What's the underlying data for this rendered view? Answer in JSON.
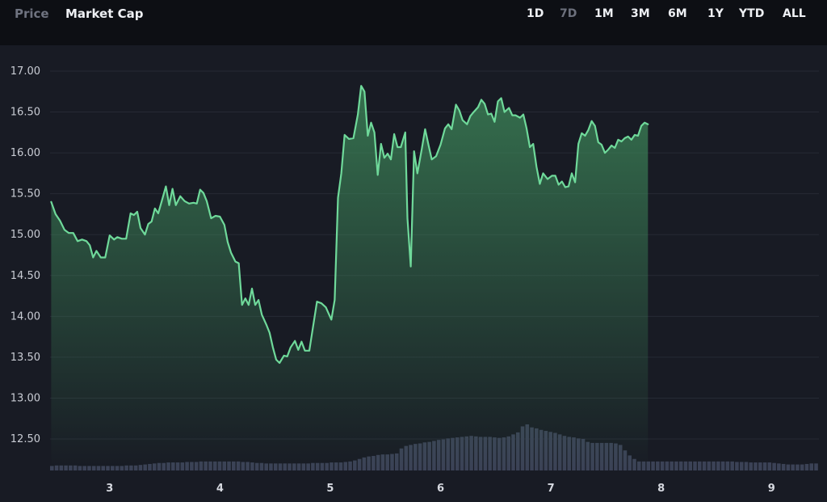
{
  "tabs": [
    {
      "label": "Price",
      "active": false
    },
    {
      "label": "Market Cap",
      "active": true
    }
  ],
  "ranges": [
    {
      "label": "1D",
      "active": false
    },
    {
      "label": "7D",
      "active": true
    },
    {
      "label": "1M",
      "active": false
    },
    {
      "label": "3M",
      "active": false
    },
    {
      "label": "6M",
      "active": false
    },
    {
      "label": "1Y",
      "active": false
    },
    {
      "label": "YTD",
      "active": false
    },
    {
      "label": "ALL",
      "active": false
    }
  ],
  "colors": {
    "line": "#6fd99a",
    "fill_top": "#3f8d5c",
    "volume": "#3b4256",
    "grid": "#262a35",
    "background": "#181b24"
  },
  "chart_data": {
    "type": "area",
    "title": "",
    "xlabel": "",
    "ylabel": "",
    "ylim": [
      12.2,
      17.2
    ],
    "xlim": [
      2.46,
      9.43
    ],
    "yticks": [
      12.5,
      13.0,
      13.5,
      14.0,
      14.5,
      15.0,
      15.5,
      16.0,
      16.5,
      17.0
    ],
    "ytick_labels": [
      "12.50",
      "13.00",
      "13.50",
      "14.00",
      "14.50",
      "15.00",
      "15.50",
      "16.00",
      "16.50",
      "17.00"
    ],
    "xticks": [
      3,
      4,
      5,
      6,
      7,
      8,
      9
    ],
    "xtick_labels": [
      "3",
      "4",
      "5",
      "6",
      "7",
      "8",
      "9"
    ],
    "grid": true,
    "legend": "none",
    "series": [
      {
        "points": [
          [
            2.47,
            15.4
          ],
          [
            2.51,
            15.25
          ],
          [
            2.55,
            15.17
          ],
          [
            2.59,
            15.06
          ],
          [
            2.63,
            15.02
          ],
          [
            2.67,
            15.02
          ],
          [
            2.71,
            14.92
          ],
          [
            2.75,
            14.94
          ],
          [
            2.79,
            14.92
          ],
          [
            2.82,
            14.87
          ],
          [
            2.85,
            14.72
          ],
          [
            2.88,
            14.8
          ],
          [
            2.92,
            14.72
          ],
          [
            2.96,
            14.72
          ],
          [
            3.0,
            14.99
          ],
          [
            3.04,
            14.94
          ],
          [
            3.07,
            14.97
          ],
          [
            3.11,
            14.95
          ],
          [
            3.15,
            14.95
          ],
          [
            3.19,
            15.26
          ],
          [
            3.22,
            15.24
          ],
          [
            3.25,
            15.28
          ],
          [
            3.28,
            15.08
          ],
          [
            3.32,
            15.0
          ],
          [
            3.35,
            15.13
          ],
          [
            3.38,
            15.16
          ],
          [
            3.41,
            15.32
          ],
          [
            3.44,
            15.26
          ],
          [
            3.47,
            15.4
          ],
          [
            3.51,
            15.59
          ],
          [
            3.54,
            15.36
          ],
          [
            3.57,
            15.56
          ],
          [
            3.6,
            15.36
          ],
          [
            3.64,
            15.47
          ],
          [
            3.68,
            15.41
          ],
          [
            3.72,
            15.38
          ],
          [
            3.76,
            15.39
          ],
          [
            3.79,
            15.38
          ],
          [
            3.82,
            15.55
          ],
          [
            3.85,
            15.51
          ],
          [
            3.88,
            15.41
          ],
          [
            3.92,
            15.2
          ],
          [
            3.96,
            15.23
          ],
          [
            4.0,
            15.22
          ],
          [
            4.04,
            15.12
          ],
          [
            4.07,
            14.91
          ],
          [
            4.1,
            14.78
          ],
          [
            4.14,
            14.67
          ],
          [
            4.17,
            14.65
          ],
          [
            4.2,
            14.14
          ],
          [
            4.23,
            14.22
          ],
          [
            4.26,
            14.14
          ],
          [
            4.29,
            14.34
          ],
          [
            4.32,
            14.14
          ],
          [
            4.35,
            14.2
          ],
          [
            4.38,
            14.02
          ],
          [
            4.42,
            13.9
          ],
          [
            4.45,
            13.8
          ],
          [
            4.48,
            13.62
          ],
          [
            4.51,
            13.47
          ],
          [
            4.54,
            13.43
          ],
          [
            4.58,
            13.52
          ],
          [
            4.61,
            13.51
          ],
          [
            4.64,
            13.62
          ],
          [
            4.68,
            13.7
          ],
          [
            4.71,
            13.59
          ],
          [
            4.74,
            13.69
          ],
          [
            4.77,
            13.58
          ],
          [
            4.81,
            13.58
          ],
          [
            4.84,
            13.84
          ],
          [
            4.88,
            14.18
          ],
          [
            4.92,
            14.16
          ],
          [
            4.96,
            14.11
          ],
          [
            4.98,
            14.05
          ],
          [
            5.01,
            13.96
          ],
          [
            5.04,
            14.2
          ],
          [
            5.07,
            15.45
          ],
          [
            5.1,
            15.75
          ],
          [
            5.13,
            16.22
          ],
          [
            5.17,
            16.17
          ],
          [
            5.21,
            16.18
          ],
          [
            5.25,
            16.47
          ],
          [
            5.28,
            16.82
          ],
          [
            5.31,
            16.75
          ],
          [
            5.34,
            16.21
          ],
          [
            5.37,
            16.37
          ],
          [
            5.4,
            16.25
          ],
          [
            5.43,
            15.73
          ],
          [
            5.46,
            16.11
          ],
          [
            5.49,
            15.94
          ],
          [
            5.52,
            15.99
          ],
          [
            5.55,
            15.92
          ],
          [
            5.58,
            16.23
          ],
          [
            5.61,
            16.07
          ],
          [
            5.64,
            16.07
          ],
          [
            5.68,
            16.25
          ],
          [
            5.7,
            15.2
          ],
          [
            5.73,
            14.61
          ],
          [
            5.76,
            16.02
          ],
          [
            5.79,
            15.75
          ],
          [
            5.83,
            16.05
          ],
          [
            5.86,
            16.29
          ],
          [
            5.89,
            16.1
          ],
          [
            5.92,
            15.92
          ],
          [
            5.96,
            15.96
          ],
          [
            6.0,
            16.1
          ],
          [
            6.04,
            16.3
          ],
          [
            6.07,
            16.35
          ],
          [
            6.1,
            16.29
          ],
          [
            6.14,
            16.59
          ],
          [
            6.17,
            16.52
          ],
          [
            6.2,
            16.4
          ],
          [
            6.24,
            16.35
          ],
          [
            6.27,
            16.45
          ],
          [
            6.3,
            16.5
          ],
          [
            6.34,
            16.56
          ],
          [
            6.37,
            16.65
          ],
          [
            6.4,
            16.6
          ],
          [
            6.43,
            16.47
          ],
          [
            6.46,
            16.48
          ],
          [
            6.49,
            16.38
          ],
          [
            6.52,
            16.63
          ],
          [
            6.55,
            16.67
          ],
          [
            6.58,
            16.5
          ],
          [
            6.62,
            16.55
          ],
          [
            6.65,
            16.46
          ],
          [
            6.68,
            16.46
          ],
          [
            6.72,
            16.43
          ],
          [
            6.75,
            16.47
          ],
          [
            6.78,
            16.3
          ],
          [
            6.81,
            16.07
          ],
          [
            6.84,
            16.11
          ],
          [
            6.87,
            15.83
          ],
          [
            6.9,
            15.62
          ],
          [
            6.93,
            15.75
          ],
          [
            6.97,
            15.68
          ],
          [
            7.01,
            15.72
          ],
          [
            7.04,
            15.72
          ],
          [
            7.07,
            15.61
          ],
          [
            7.1,
            15.65
          ],
          [
            7.13,
            15.58
          ],
          [
            7.16,
            15.59
          ],
          [
            7.19,
            15.75
          ],
          [
            7.22,
            15.64
          ],
          [
            7.25,
            16.11
          ],
          [
            7.28,
            16.24
          ],
          [
            7.31,
            16.21
          ],
          [
            7.34,
            16.28
          ],
          [
            7.37,
            16.39
          ],
          [
            7.4,
            16.33
          ],
          [
            7.43,
            16.13
          ],
          [
            7.46,
            16.1
          ],
          [
            7.49,
            16.0
          ],
          [
            7.52,
            16.04
          ],
          [
            7.55,
            16.09
          ],
          [
            7.58,
            16.06
          ],
          [
            7.61,
            16.16
          ],
          [
            7.64,
            16.14
          ],
          [
            7.67,
            16.18
          ],
          [
            7.7,
            16.2
          ],
          [
            7.73,
            16.16
          ],
          [
            7.76,
            16.22
          ],
          [
            7.79,
            16.21
          ],
          [
            7.82,
            16.33
          ],
          [
            7.85,
            16.37
          ],
          [
            7.88,
            16.35
          ]
        ]
      }
    ],
    "volume_bars": {
      "note": "unlabeled bars along bottom, relative heights only",
      "values": [
        0.09,
        0.1,
        0.1,
        0.1,
        0.1,
        0.1,
        0.09,
        0.09,
        0.09,
        0.09,
        0.09,
        0.09,
        0.09,
        0.09,
        0.09,
        0.09,
        0.1,
        0.1,
        0.1,
        0.11,
        0.12,
        0.13,
        0.14,
        0.15,
        0.15,
        0.16,
        0.16,
        0.16,
        0.16,
        0.17,
        0.17,
        0.17,
        0.18,
        0.18,
        0.18,
        0.18,
        0.18,
        0.18,
        0.18,
        0.18,
        0.18,
        0.17,
        0.17,
        0.16,
        0.15,
        0.15,
        0.14,
        0.14,
        0.14,
        0.14,
        0.14,
        0.14,
        0.14,
        0.14,
        0.14,
        0.14,
        0.15,
        0.15,
        0.15,
        0.15,
        0.16,
        0.16,
        0.16,
        0.17,
        0.18,
        0.2,
        0.23,
        0.26,
        0.28,
        0.29,
        0.31,
        0.32,
        0.32,
        0.33,
        0.34,
        0.44,
        0.49,
        0.51,
        0.53,
        0.54,
        0.56,
        0.57,
        0.59,
        0.61,
        0.62,
        0.64,
        0.65,
        0.66,
        0.67,
        0.68,
        0.69,
        0.68,
        0.67,
        0.67,
        0.67,
        0.66,
        0.65,
        0.66,
        0.68,
        0.72,
        0.76,
        0.88,
        0.92,
        0.86,
        0.84,
        0.81,
        0.79,
        0.77,
        0.75,
        0.72,
        0.69,
        0.67,
        0.66,
        0.64,
        0.63,
        0.57,
        0.55,
        0.55,
        0.55,
        0.55,
        0.55,
        0.54,
        0.51,
        0.4,
        0.3,
        0.23,
        0.18,
        0.18,
        0.18,
        0.18,
        0.18,
        0.18,
        0.18,
        0.18,
        0.18,
        0.18,
        0.18,
        0.18,
        0.18,
        0.18,
        0.18,
        0.18,
        0.18,
        0.18,
        0.18,
        0.18,
        0.18,
        0.17,
        0.17,
        0.17,
        0.16,
        0.16,
        0.16,
        0.16,
        0.16,
        0.15,
        0.14,
        0.13,
        0.12,
        0.12,
        0.12,
        0.12,
        0.13,
        0.14,
        0.14
      ]
    }
  }
}
